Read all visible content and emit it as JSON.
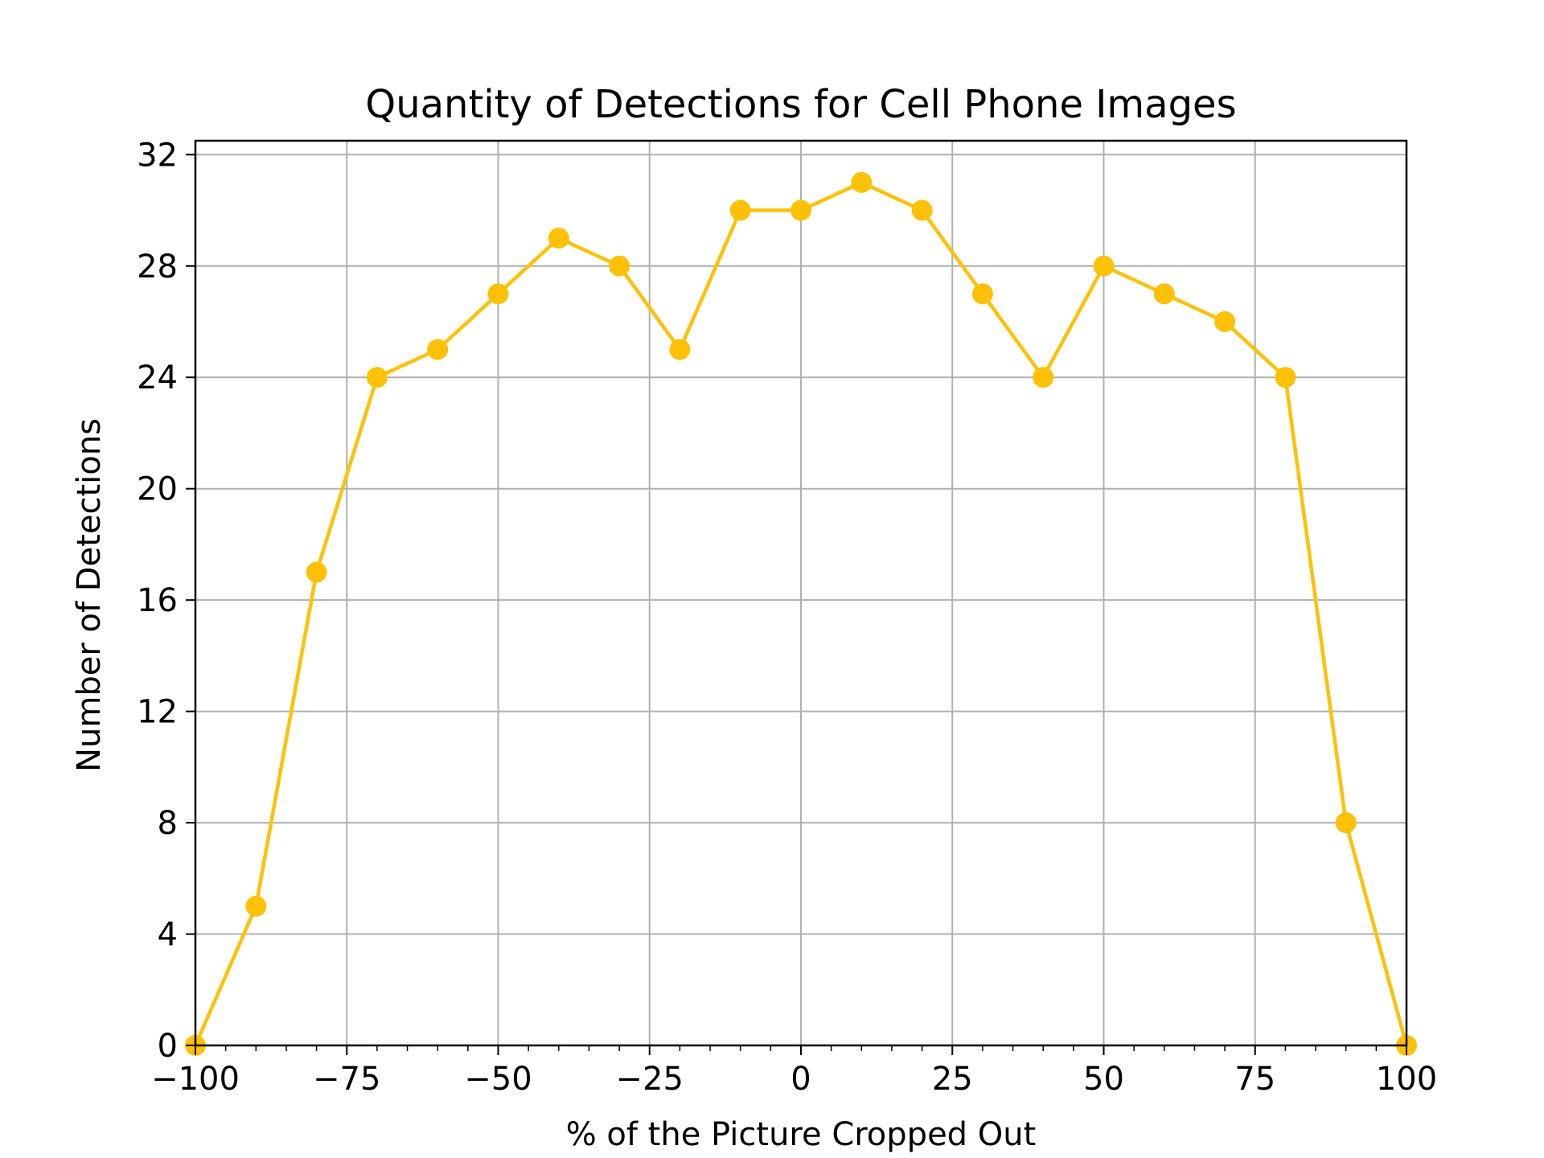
{
  "chart_data": {
    "type": "line",
    "title": "Quantity of Detections for Cell Phone Images",
    "xlabel": "% of the Picture Cropped Out",
    "ylabel": "Number of Detections",
    "xlim": [
      -100,
      100
    ],
    "ylim": [
      0,
      32.5
    ],
    "x_ticks": [
      -100,
      -75,
      -50,
      -25,
      0,
      25,
      50,
      75,
      100
    ],
    "x_tick_labels": [
      "−100",
      "−75",
      "−50",
      "−25",
      "0",
      "25",
      "50",
      "75",
      "100"
    ],
    "y_ticks": [
      0,
      4,
      8,
      12,
      16,
      20,
      24,
      28,
      32
    ],
    "y_tick_labels": [
      "0",
      "4",
      "8",
      "12",
      "16",
      "20",
      "24",
      "28",
      "32"
    ],
    "x_minor_step": 5,
    "grid": true,
    "series": [
      {
        "color": "#FFC107",
        "marker": "circle",
        "x": [
          -100,
          -90,
          -80,
          -70,
          -60,
          -50,
          -40,
          -30,
          -20,
          -10,
          0,
          10,
          20,
          30,
          40,
          50,
          60,
          70,
          80,
          90,
          100
        ],
        "y": [
          0,
          5,
          17,
          24,
          25,
          27,
          29,
          28,
          25,
          30,
          30,
          31,
          30,
          27,
          24,
          28,
          27,
          26,
          24,
          8,
          0
        ]
      }
    ]
  }
}
